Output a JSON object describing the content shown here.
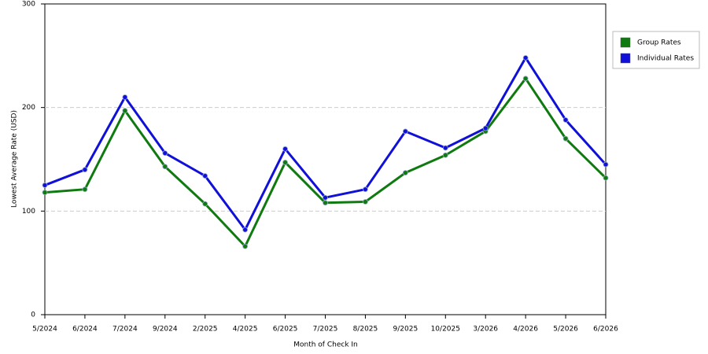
{
  "chart_data": {
    "type": "line",
    "x_label": "Month of Check In",
    "y_label": "Lowest Average Rate (USD)",
    "categories": [
      "5/2024",
      "6/2024",
      "7/2024",
      "9/2024",
      "2/2025",
      "4/2025",
      "6/2025",
      "7/2025",
      "8/2025",
      "9/2025",
      "10/2025",
      "3/2026",
      "4/2026",
      "5/2026",
      "6/2026"
    ],
    "series": [
      {
        "name": "Group Rates",
        "color": "#0f7a0f",
        "values": [
          118,
          121,
          197,
          143,
          107,
          66,
          147,
          108,
          109,
          137,
          154,
          177,
          228,
          170,
          132
        ]
      },
      {
        "name": "Individual Rates",
        "color": "#1010d8",
        "values": [
          125,
          140,
          210,
          156,
          134,
          82,
          160,
          113,
          121,
          177,
          161,
          180,
          248,
          188,
          145
        ]
      }
    ],
    "ylim": [
      0,
      300
    ],
    "yticks": [
      0,
      100,
      200,
      300
    ],
    "grid": true
  }
}
